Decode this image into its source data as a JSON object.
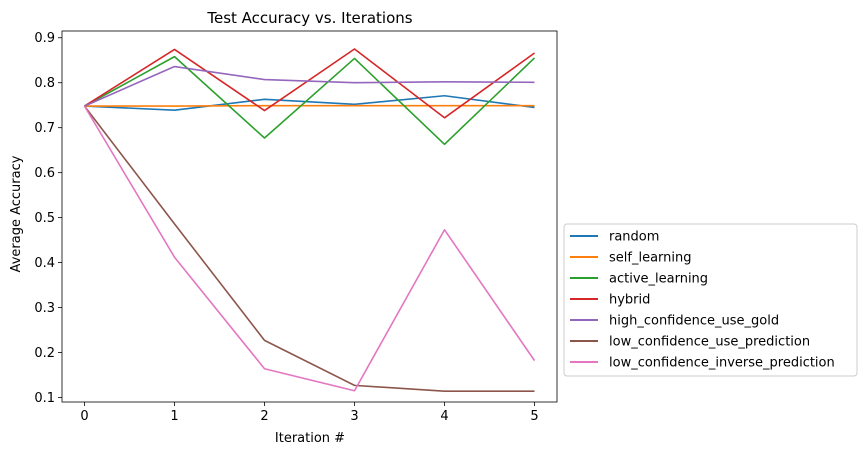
{
  "chart_data": {
    "type": "line",
    "title": "Test Accuracy vs. Iterations",
    "xlabel": "Iteration #",
    "ylabel": "Average Accuracy",
    "x": [
      0,
      1,
      2,
      3,
      4,
      5
    ],
    "xticks": [
      "0",
      "1",
      "2",
      "3",
      "4",
      "5"
    ],
    "yticks": [
      "0.1",
      "0.2",
      "0.3",
      "0.4",
      "0.5",
      "0.6",
      "0.7",
      "0.8",
      "0.9"
    ],
    "xlim": [
      -0.25,
      5.25
    ],
    "ylim": [
      0.09,
      0.915
    ],
    "grid": false,
    "legend_position": "right, outside plot area",
    "series": [
      {
        "name": "random",
        "color": "#1f77b4",
        "values": [
          0.748,
          0.739,
          0.763,
          0.752,
          0.771,
          0.745
        ]
      },
      {
        "name": "self_learning",
        "color": "#ff7f0e",
        "values": [
          0.748,
          0.748,
          0.749,
          0.749,
          0.749,
          0.749
        ]
      },
      {
        "name": "active_learning",
        "color": "#2ca02c",
        "values": [
          0.748,
          0.858,
          0.677,
          0.854,
          0.663,
          0.855
        ]
      },
      {
        "name": "hybrid",
        "color": "#d62728",
        "values": [
          0.748,
          0.874,
          0.738,
          0.875,
          0.722,
          0.866
        ]
      },
      {
        "name": "high_confidence_use_gold",
        "color": "#9467bd",
        "values": [
          0.748,
          0.836,
          0.807,
          0.8,
          0.802,
          0.801
        ]
      },
      {
        "name": "low_confidence_use_prediction",
        "color": "#8c564b",
        "values": [
          0.748,
          0.486,
          0.227,
          0.127,
          0.114,
          0.114
        ]
      },
      {
        "name": "low_confidence_inverse_prediction",
        "color": "#e377c2",
        "values": [
          0.748,
          0.412,
          0.164,
          0.115,
          0.473,
          0.182
        ]
      }
    ]
  }
}
